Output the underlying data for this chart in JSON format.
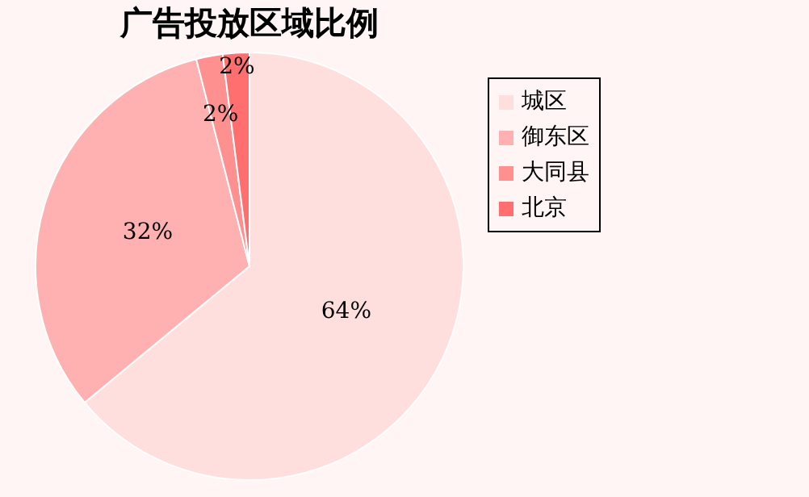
{
  "chart_data": {
    "type": "pie",
    "title": "广告投放区域比例",
    "categories": [
      "城区",
      "御东区",
      "大同县",
      "北京"
    ],
    "values": [
      64,
      32,
      2,
      2
    ],
    "colors": [
      "#ffdede",
      "#ffb0b0",
      "#ff9090",
      "#ff6f6f"
    ],
    "value_labels": [
      "64%",
      "32%",
      "2%",
      "2%"
    ],
    "legend": "right"
  }
}
